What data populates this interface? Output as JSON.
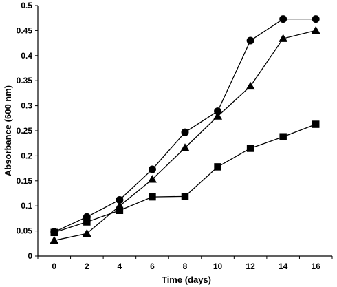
{
  "chart_data": {
    "type": "line",
    "title": "",
    "xlabel": "Time (days)",
    "ylabel": "Absorbance (600 nm)",
    "xlim": [
      -1,
      17
    ],
    "ylim": [
      0,
      0.5
    ],
    "x_ticks": [
      0,
      2,
      4,
      6,
      8,
      10,
      12,
      14,
      16
    ],
    "y_ticks": [
      0,
      0.05,
      0.1,
      0.15,
      0.2,
      0.25,
      0.3,
      0.35,
      0.4,
      0.45,
      0.5
    ],
    "y_tick_labels": [
      "0",
      "0.05",
      "0.1",
      "0.15",
      "0.2",
      "0.25",
      "0.3",
      "0.35",
      "0.4",
      "0.45",
      "0.5"
    ],
    "grid": false,
    "legend": "none",
    "x": [
      0,
      2,
      4,
      6,
      8,
      10,
      12,
      14,
      16
    ],
    "series": [
      {
        "marker": "circle",
        "color": "#000000",
        "values": [
          0.048,
          0.078,
          0.112,
          0.173,
          0.247,
          0.289,
          0.43,
          0.473,
          0.473
        ]
      },
      {
        "marker": "triangle",
        "color": "#000000",
        "values": [
          0.031,
          0.045,
          0.1,
          0.153,
          0.216,
          0.279,
          0.339,
          0.434,
          0.45
        ]
      },
      {
        "marker": "square",
        "color": "#000000",
        "values": [
          0.047,
          0.068,
          0.091,
          0.118,
          0.119,
          0.178,
          0.215,
          0.238,
          0.263
        ]
      }
    ]
  }
}
